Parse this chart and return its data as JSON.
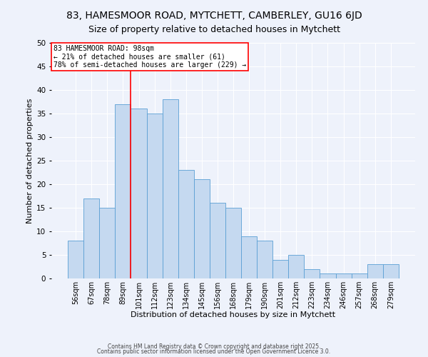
{
  "title": "83, HAMESMOOR ROAD, MYTCHETT, CAMBERLEY, GU16 6JD",
  "subtitle": "Size of property relative to detached houses in Mytchett",
  "xlabel": "Distribution of detached houses by size in Mytchett",
  "ylabel": "Number of detached properties",
  "categories": [
    "56sqm",
    "67sqm",
    "78sqm",
    "89sqm",
    "101sqm",
    "112sqm",
    "123sqm",
    "134sqm",
    "145sqm",
    "156sqm",
    "168sqm",
    "179sqm",
    "190sqm",
    "201sqm",
    "212sqm",
    "223sqm",
    "234sqm",
    "246sqm",
    "257sqm",
    "268sqm",
    "279sqm"
  ],
  "values": [
    8,
    17,
    15,
    37,
    36,
    35,
    38,
    23,
    21,
    16,
    15,
    9,
    8,
    4,
    5,
    2,
    1,
    1,
    1,
    3,
    3
  ],
  "bar_color": "#c5d9f0",
  "bar_edge_color": "#5a9fd4",
  "red_line_x": 3.5,
  "annotation_title": "83 HAMESMOOR ROAD: 98sqm",
  "annotation_line1": "← 21% of detached houses are smaller (61)",
  "annotation_line2": "78% of semi-detached houses are larger (229) →",
  "annotation_box_color": "white",
  "annotation_box_edge": "red",
  "ylim": [
    0,
    50
  ],
  "yticks": [
    0,
    5,
    10,
    15,
    20,
    25,
    30,
    35,
    40,
    45,
    50
  ],
  "footer1": "Contains HM Land Registry data © Crown copyright and database right 2025.",
  "footer2": "Contains public sector information licensed under the Open Government Licence 3.0.",
  "bg_color": "#eef2fb",
  "grid_color": "white",
  "title_fontsize": 10,
  "subtitle_fontsize": 9,
  "tick_fontsize": 7,
  "ylabel_fontsize": 8,
  "xlabel_fontsize": 8,
  "footer_fontsize": 5.5
}
